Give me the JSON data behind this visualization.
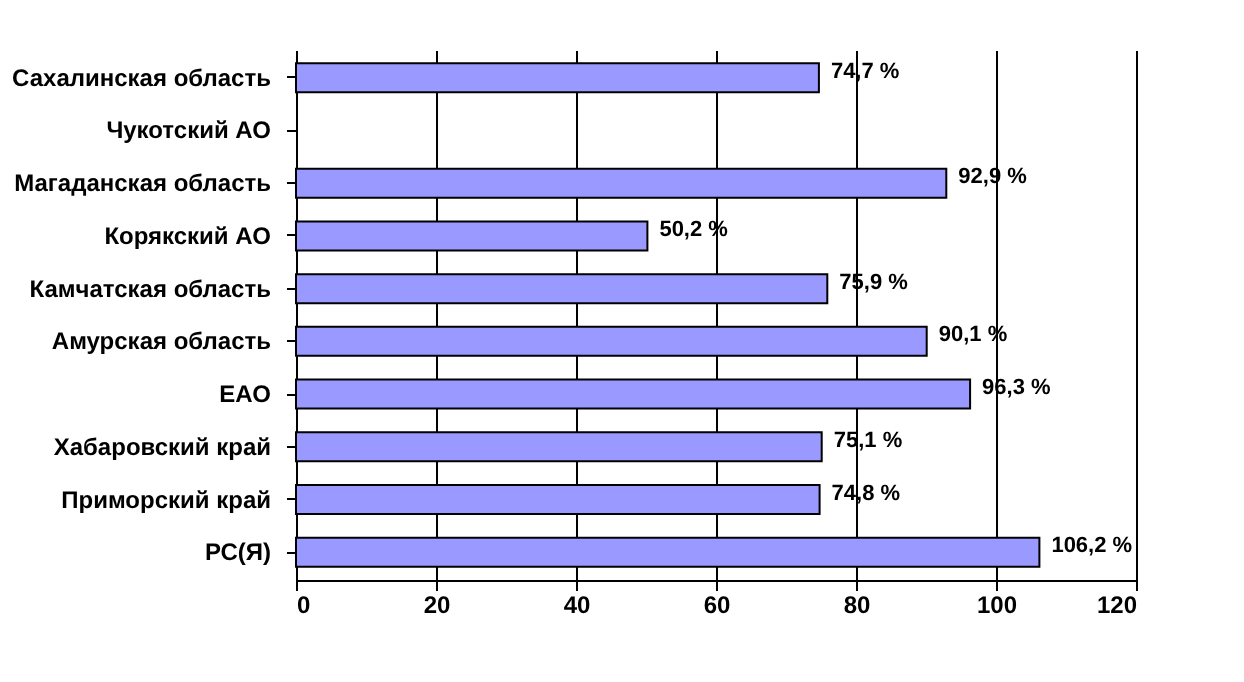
{
  "chart_data": {
    "type": "bar",
    "orientation": "horizontal",
    "categories": [
      "Сахалинская область",
      "Чукотский АО",
      "Магаданская область",
      "Корякский АО",
      "Камчатская область",
      "Амурская область",
      "ЕАО",
      "Хабаровский край",
      "Приморский край",
      "РС(Я)"
    ],
    "values": [
      74.7,
      null,
      92.9,
      50.2,
      75.9,
      90.1,
      96.3,
      75.1,
      74.8,
      106.2
    ],
    "value_labels": [
      "74,7 %",
      null,
      "92,9 %",
      "50,2 %",
      "75,9 %",
      "90,1 %",
      "96,3 %",
      "75,1 %",
      "74,8 %",
      "106,2 %"
    ],
    "color": "#9999ff",
    "xlim": [
      0,
      120
    ],
    "xticks": [
      0,
      20,
      40,
      60,
      80,
      100,
      120
    ],
    "grid": "x"
  }
}
